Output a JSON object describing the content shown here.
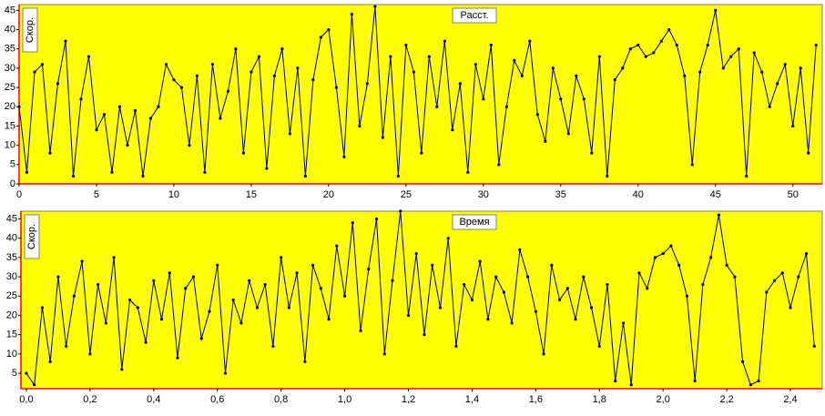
{
  "chart_data": [
    {
      "type": "line",
      "annotation": "Расст.",
      "y_label": "Скор.",
      "xlim": [
        0,
        51.9
      ],
      "xticks": [
        0,
        5,
        10,
        15,
        20,
        25,
        30,
        35,
        40,
        45,
        50
      ],
      "ylim": [
        0,
        46.5
      ],
      "yticks": [
        0,
        5,
        10,
        15,
        20,
        25,
        30,
        35,
        40,
        45
      ],
      "background": "#ffff00",
      "series": [
        {
          "color": "#000080",
          "x": [
            0,
            0.5,
            1,
            1.5,
            2,
            2.5,
            3,
            3.5,
            4,
            4.5,
            5,
            5.5,
            6,
            6.5,
            7,
            7.5,
            8,
            8.5,
            9,
            9.5,
            10,
            10.5,
            11,
            11.5,
            12,
            12.5,
            13,
            13.5,
            14,
            14.5,
            15,
            15.5,
            16,
            16.5,
            17,
            17.5,
            18,
            18.5,
            19,
            19.5,
            20,
            20.5,
            21,
            21.5,
            22,
            22.5,
            23,
            23.5,
            24,
            24.5,
            25,
            25.5,
            26,
            26.5,
            27,
            27.5,
            28,
            28.5,
            29,
            29.5,
            30,
            30.5,
            31,
            31.5,
            32,
            32.5,
            33,
            33.5,
            34,
            34.5,
            35,
            35.5,
            36,
            36.5,
            37,
            37.5,
            38,
            38.5,
            39,
            39.5,
            40,
            40.5,
            41,
            41.5,
            42,
            42.5,
            43,
            43.5,
            44,
            44.5,
            45,
            45.5,
            46,
            46.5,
            47,
            47.5,
            48,
            48.5,
            49,
            49.5,
            50,
            50.5,
            51,
            51.5
          ],
          "values": [
            20,
            3,
            29,
            31,
            8,
            26,
            37,
            2,
            22,
            33,
            14,
            18,
            3,
            20,
            10,
            19,
            2,
            17,
            20,
            31,
            27,
            25,
            10,
            28,
            3,
            31,
            17,
            24,
            35,
            8,
            29,
            33,
            4,
            28,
            35,
            13,
            30,
            2,
            27,
            38,
            40,
            25,
            7,
            44,
            15,
            26,
            46,
            12,
            33,
            2,
            36,
            29,
            8,
            33,
            20,
            37,
            14,
            26,
            3,
            31,
            22,
            36,
            5,
            20,
            32,
            28,
            37,
            18,
            11,
            30,
            22,
            13,
            28,
            22,
            8,
            33,
            2,
            27,
            30,
            35,
            36,
            33,
            34,
            37,
            40,
            36,
            28,
            5,
            29,
            36,
            45,
            30,
            33,
            35,
            2,
            34,
            29,
            20,
            26,
            31,
            15,
            30,
            8,
            36
          ]
        }
      ]
    },
    {
      "type": "line",
      "annotation": "Время",
      "y_label": "Скор.",
      "xlim": [
        -0.017,
        2.5
      ],
      "xticks": [
        {
          "value": 0,
          "label": "0,0"
        },
        {
          "value": 0.2,
          "label": "0,2"
        },
        {
          "value": 0.4,
          "label": "0,4"
        },
        {
          "value": 0.6,
          "label": "0,6"
        },
        {
          "value": 0.8,
          "label": "0,8"
        },
        {
          "value": 1,
          "label": "1,0"
        },
        {
          "value": 1.2,
          "label": "1,2"
        },
        {
          "value": 1.4,
          "label": "1,4"
        },
        {
          "value": 1.6,
          "label": "1,6"
        },
        {
          "value": 1.8,
          "label": "1,8"
        },
        {
          "value": 2,
          "label": "2,0"
        },
        {
          "value": 2.2,
          "label": "2,2"
        },
        {
          "value": 2.4,
          "label": "2,4"
        }
      ],
      "ylim": [
        1,
        47
      ],
      "yticks": [
        5,
        10,
        15,
        20,
        25,
        30,
        35,
        40,
        45
      ],
      "background": "#ffff00",
      "series": [
        {
          "color": "#000080",
          "x": [
            0,
            0.025,
            0.05,
            0.075,
            0.1,
            0.125,
            0.15,
            0.175,
            0.2,
            0.225,
            0.25,
            0.275,
            0.3,
            0.325,
            0.35,
            0.375,
            0.4,
            0.425,
            0.45,
            0.475,
            0.5,
            0.525,
            0.55,
            0.575,
            0.6,
            0.625,
            0.65,
            0.675,
            0.7,
            0.725,
            0.75,
            0.775,
            0.8,
            0.825,
            0.85,
            0.875,
            0.9,
            0.925,
            0.95,
            0.975,
            1,
            1.025,
            1.05,
            1.075,
            1.1,
            1.125,
            1.15,
            1.175,
            1.2,
            1.225,
            1.25,
            1.275,
            1.3,
            1.325,
            1.35,
            1.375,
            1.4,
            1.425,
            1.45,
            1.475,
            1.5,
            1.525,
            1.55,
            1.575,
            1.6,
            1.625,
            1.65,
            1.675,
            1.7,
            1.725,
            1.75,
            1.775,
            1.8,
            1.825,
            1.85,
            1.875,
            1.9,
            1.925,
            1.95,
            1.975,
            2,
            2.025,
            2.05,
            2.075,
            2.1,
            2.125,
            2.15,
            2.175,
            2.2,
            2.225,
            2.25,
            2.275,
            2.3,
            2.325,
            2.35,
            2.375,
            2.4,
            2.425,
            2.45,
            2.475
          ],
          "values": [
            5,
            2,
            22,
            8,
            30,
            12,
            25,
            34,
            10,
            28,
            18,
            35,
            6,
            24,
            22,
            13,
            29,
            19,
            31,
            9,
            27,
            30,
            14,
            21,
            33,
            5,
            24,
            18,
            29,
            22,
            28,
            12,
            35,
            22,
            31,
            8,
            33,
            27,
            19,
            38,
            25,
            44,
            16,
            32,
            45,
            10,
            29,
            47,
            20,
            36,
            15,
            33,
            22,
            40,
            12,
            28,
            24,
            34,
            19,
            30,
            26,
            18,
            37,
            30,
            21,
            10,
            33,
            24,
            27,
            19,
            30,
            22,
            12,
            28,
            3,
            18,
            2,
            31,
            27,
            35,
            36,
            38,
            33,
            25,
            3,
            28,
            35,
            46,
            33,
            30,
            8,
            2,
            3,
            26,
            29,
            31,
            22,
            30,
            36,
            12
          ]
        }
      ]
    }
  ]
}
